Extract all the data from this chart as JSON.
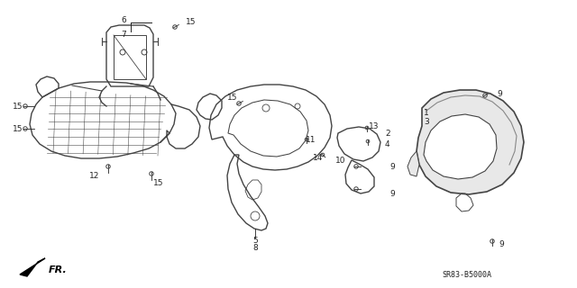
{
  "bg_color": "#ffffff",
  "part_color": "#444444",
  "text_color": "#222222",
  "diagram_code": "SR83-B5000A",
  "fr_label": "FR."
}
